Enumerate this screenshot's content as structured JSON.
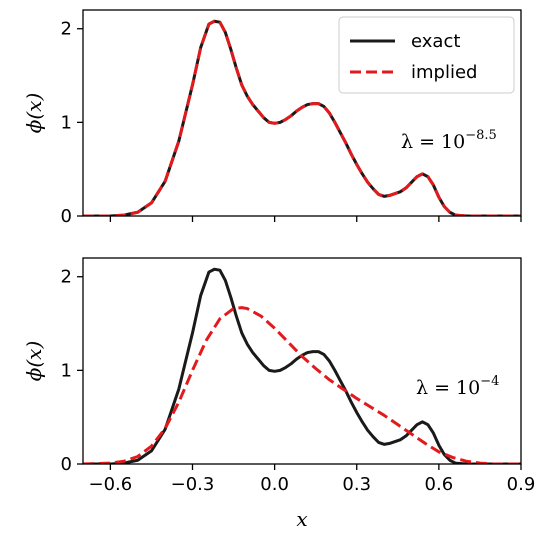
{
  "chart_data": [
    {
      "type": "line",
      "xlim": [
        -0.7,
        0.9
      ],
      "ylim": [
        0,
        2.2
      ],
      "xticks": [
        -0.6,
        -0.3,
        0.0,
        0.3,
        0.6,
        0.9
      ],
      "xtick_labels": [
        "",
        "",
        "",
        "",
        "",
        ""
      ],
      "yticks": [
        0,
        1,
        2
      ],
      "ytick_labels": [
        "0",
        "1",
        "2"
      ],
      "xlabel": "",
      "ylabel": "ϕ(x)",
      "grid": false,
      "legend": {
        "placement": "top-right",
        "entries": [
          {
            "label": "exact",
            "color": "#1a1a1a",
            "style": "solid"
          },
          {
            "label": "implied",
            "color": "#e31a1c",
            "style": "dashed"
          }
        ]
      },
      "annotation": {
        "base": "λ = 10",
        "exponent": "−8.5"
      },
      "series": [
        {
          "name": "exact",
          "color": "#1a1a1a",
          "style": "solid",
          "x": [
            -0.7,
            -0.6,
            -0.55,
            -0.5,
            -0.45,
            -0.4,
            -0.35,
            -0.3,
            -0.27,
            -0.24,
            -0.22,
            -0.2,
            -0.18,
            -0.16,
            -0.14,
            -0.12,
            -0.1,
            -0.08,
            -0.06,
            -0.04,
            -0.02,
            0.0,
            0.02,
            0.04,
            0.06,
            0.08,
            0.1,
            0.12,
            0.14,
            0.16,
            0.18,
            0.2,
            0.22,
            0.24,
            0.26,
            0.28,
            0.3,
            0.32,
            0.34,
            0.36,
            0.38,
            0.4,
            0.42,
            0.44,
            0.46,
            0.48,
            0.5,
            0.52,
            0.54,
            0.56,
            0.58,
            0.6,
            0.62,
            0.64,
            0.66,
            0.7,
            0.75,
            0.8,
            0.9
          ],
          "y": [
            0,
            0,
            0.01,
            0.04,
            0.14,
            0.37,
            0.8,
            1.4,
            1.8,
            2.05,
            2.08,
            2.07,
            1.96,
            1.78,
            1.58,
            1.4,
            1.28,
            1.19,
            1.12,
            1.05,
            1.0,
            0.99,
            1.0,
            1.03,
            1.07,
            1.12,
            1.16,
            1.19,
            1.2,
            1.2,
            1.17,
            1.1,
            1.0,
            0.89,
            0.78,
            0.66,
            0.55,
            0.45,
            0.36,
            0.29,
            0.23,
            0.21,
            0.22,
            0.24,
            0.26,
            0.3,
            0.36,
            0.42,
            0.45,
            0.42,
            0.33,
            0.2,
            0.1,
            0.04,
            0.01,
            0,
            0,
            0,
            0
          ]
        },
        {
          "name": "implied",
          "color": "#e31a1c",
          "style": "dashed",
          "x": [
            -0.7,
            -0.6,
            -0.55,
            -0.5,
            -0.45,
            -0.4,
            -0.35,
            -0.3,
            -0.27,
            -0.24,
            -0.22,
            -0.2,
            -0.18,
            -0.16,
            -0.14,
            -0.12,
            -0.1,
            -0.08,
            -0.06,
            -0.04,
            -0.02,
            0.0,
            0.02,
            0.04,
            0.06,
            0.08,
            0.1,
            0.12,
            0.14,
            0.16,
            0.18,
            0.2,
            0.22,
            0.24,
            0.26,
            0.28,
            0.3,
            0.32,
            0.34,
            0.36,
            0.38,
            0.4,
            0.42,
            0.44,
            0.46,
            0.48,
            0.5,
            0.52,
            0.54,
            0.56,
            0.58,
            0.6,
            0.62,
            0.64,
            0.66,
            0.7,
            0.75,
            0.8,
            0.9
          ],
          "y": [
            0,
            0,
            0.01,
            0.04,
            0.14,
            0.37,
            0.8,
            1.4,
            1.8,
            2.05,
            2.08,
            2.07,
            1.96,
            1.78,
            1.58,
            1.4,
            1.28,
            1.19,
            1.12,
            1.05,
            1.0,
            0.99,
            1.0,
            1.03,
            1.07,
            1.12,
            1.16,
            1.19,
            1.2,
            1.2,
            1.17,
            1.1,
            1.0,
            0.89,
            0.78,
            0.66,
            0.55,
            0.45,
            0.36,
            0.29,
            0.23,
            0.21,
            0.22,
            0.24,
            0.26,
            0.3,
            0.36,
            0.42,
            0.45,
            0.42,
            0.33,
            0.2,
            0.1,
            0.04,
            0.01,
            0,
            0,
            0,
            0
          ]
        }
      ]
    },
    {
      "type": "line",
      "xlim": [
        -0.7,
        0.9
      ],
      "ylim": [
        0,
        2.2
      ],
      "xticks": [
        -0.6,
        -0.3,
        0.0,
        0.3,
        0.6,
        0.9
      ],
      "xtick_labels": [
        "−0.6",
        "−0.3",
        "0.0",
        "0.3",
        "0.6",
        "0.9"
      ],
      "yticks": [
        0,
        1,
        2
      ],
      "ytick_labels": [
        "0",
        "1",
        "2"
      ],
      "xlabel": "x",
      "ylabel": "ϕ(x)",
      "grid": false,
      "annotation": {
        "base": "λ = 10",
        "exponent": "−4"
      },
      "series": [
        {
          "name": "exact",
          "color": "#1a1a1a",
          "style": "solid",
          "x": [
            -0.7,
            -0.6,
            -0.55,
            -0.5,
            -0.45,
            -0.4,
            -0.35,
            -0.3,
            -0.27,
            -0.24,
            -0.22,
            -0.2,
            -0.18,
            -0.16,
            -0.14,
            -0.12,
            -0.1,
            -0.08,
            -0.06,
            -0.04,
            -0.02,
            0.0,
            0.02,
            0.04,
            0.06,
            0.08,
            0.1,
            0.12,
            0.14,
            0.16,
            0.18,
            0.2,
            0.22,
            0.24,
            0.26,
            0.28,
            0.3,
            0.32,
            0.34,
            0.36,
            0.38,
            0.4,
            0.42,
            0.44,
            0.46,
            0.48,
            0.5,
            0.52,
            0.54,
            0.56,
            0.58,
            0.6,
            0.62,
            0.64,
            0.66,
            0.7,
            0.75,
            0.8,
            0.9
          ],
          "y": [
            0,
            0,
            0.01,
            0.04,
            0.14,
            0.37,
            0.8,
            1.4,
            1.8,
            2.05,
            2.08,
            2.07,
            1.96,
            1.78,
            1.58,
            1.4,
            1.28,
            1.19,
            1.12,
            1.05,
            1.0,
            0.99,
            1.0,
            1.03,
            1.07,
            1.12,
            1.16,
            1.19,
            1.2,
            1.2,
            1.17,
            1.1,
            1.0,
            0.89,
            0.78,
            0.66,
            0.55,
            0.45,
            0.36,
            0.29,
            0.23,
            0.21,
            0.22,
            0.24,
            0.26,
            0.3,
            0.36,
            0.42,
            0.45,
            0.42,
            0.33,
            0.2,
            0.1,
            0.04,
            0.01,
            0,
            0,
            0,
            0
          ]
        },
        {
          "name": "implied",
          "color": "#e31a1c",
          "style": "dashed",
          "x": [
            -0.7,
            -0.6,
            -0.55,
            -0.5,
            -0.45,
            -0.4,
            -0.35,
            -0.3,
            -0.25,
            -0.2,
            -0.15,
            -0.12,
            -0.1,
            -0.05,
            0.0,
            0.05,
            0.1,
            0.15,
            0.2,
            0.25,
            0.3,
            0.35,
            0.4,
            0.45,
            0.5,
            0.55,
            0.6,
            0.65,
            0.7,
            0.75,
            0.8,
            0.9
          ],
          "y": [
            0,
            0.01,
            0.03,
            0.08,
            0.19,
            0.38,
            0.66,
            1.0,
            1.32,
            1.55,
            1.66,
            1.67,
            1.66,
            1.58,
            1.45,
            1.3,
            1.15,
            1.02,
            0.9,
            0.8,
            0.7,
            0.61,
            0.52,
            0.42,
            0.32,
            0.22,
            0.13,
            0.07,
            0.03,
            0.01,
            0,
            0
          ]
        }
      ]
    }
  ]
}
